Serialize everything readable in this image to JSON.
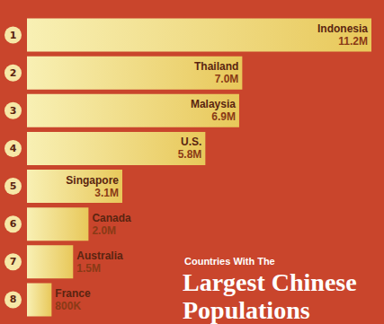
{
  "chart_data": {
    "type": "bar",
    "orientation": "horizontal",
    "title": "Largest Chinese Populations",
    "subtitle": "Countries With The",
    "categories": [
      "Indonesia",
      "Thailand",
      "Malaysia",
      "U.S.",
      "Singapore",
      "Canada",
      "Australia",
      "France"
    ],
    "ranks": [
      1,
      2,
      3,
      4,
      5,
      6,
      7,
      8
    ],
    "values": [
      11200000,
      7000000,
      6900000,
      5800000,
      3100000,
      2000000,
      1500000,
      800000
    ],
    "value_labels": [
      "11.2M",
      "7.0M",
      "6.9M",
      "5.8M",
      "3.1M",
      "2.0M",
      "1.5M",
      "800K"
    ],
    "color": "#e8c85a",
    "xlim": [
      0,
      11200000
    ],
    "data_labels": true,
    "tick_labels": false,
    "grid": false
  }
}
